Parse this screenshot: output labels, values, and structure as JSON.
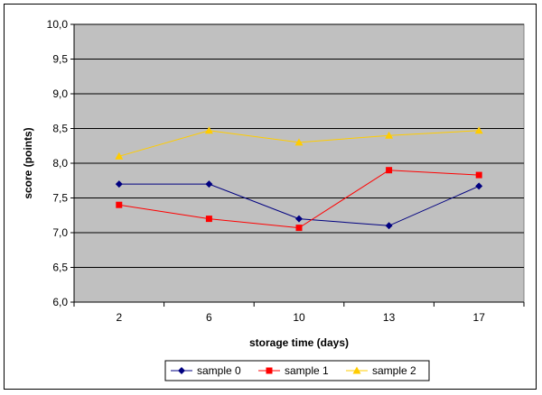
{
  "chart_data": {
    "type": "line",
    "categories": [
      "2",
      "6",
      "10",
      "13",
      "17"
    ],
    "title": "",
    "xlabel": "storage time (days)",
    "ylabel": "score (points)",
    "ylim": [
      6.0,
      10.0
    ],
    "yticks": [
      "6,0",
      "6,5",
      "7,0",
      "7,5",
      "8,0",
      "8,5",
      "9,0",
      "9,5",
      "10,0"
    ],
    "grid": true,
    "legend_position": "bottom",
    "plot_background": "#c0c0c0",
    "series": [
      {
        "name": "sample 0",
        "color": "#000080",
        "marker": "diamond",
        "values": [
          7.7,
          7.7,
          7.2,
          7.1,
          7.67
        ]
      },
      {
        "name": "sample 1",
        "color": "#ff0000",
        "marker": "square",
        "values": [
          7.4,
          7.2,
          7.07,
          7.9,
          7.83
        ]
      },
      {
        "name": "sample 2",
        "color": "#ffcc00",
        "marker": "triangle",
        "values": [
          8.1,
          8.47,
          8.3,
          8.4,
          8.47
        ]
      }
    ]
  }
}
